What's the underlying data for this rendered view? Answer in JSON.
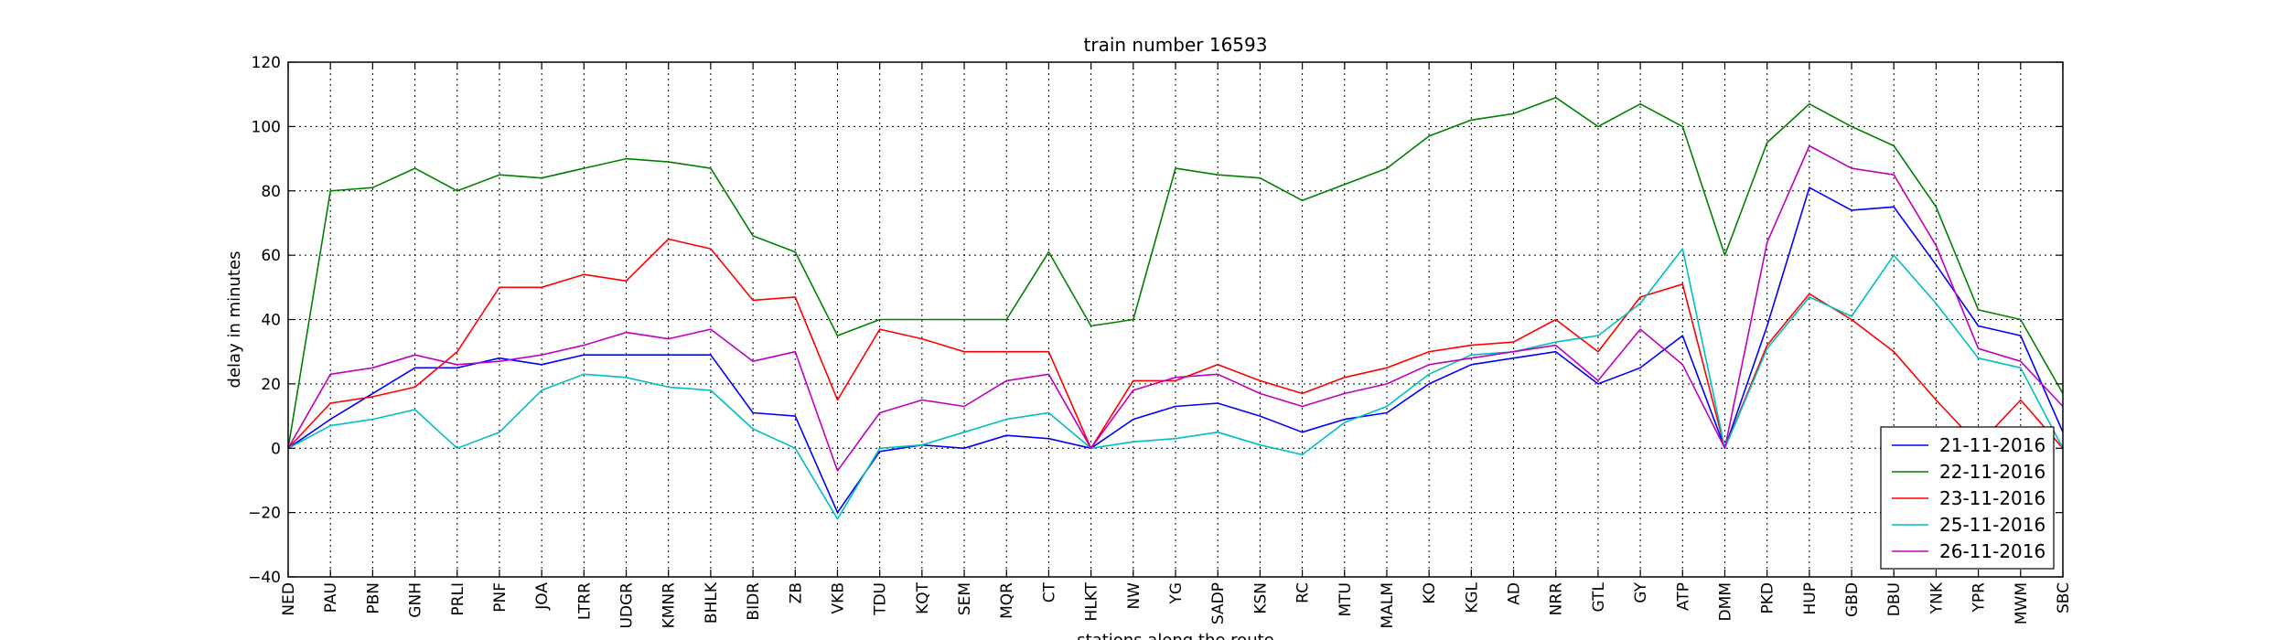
{
  "chart_data": {
    "type": "line",
    "title": "train number 16593",
    "xlabel": "stations along the route",
    "ylabel": "delay in minutes",
    "ylim": [
      -40,
      120
    ],
    "yticks": [
      -40,
      -20,
      0,
      20,
      40,
      60,
      80,
      100,
      120
    ],
    "grid": true,
    "legend_position": "lower-right",
    "categories": [
      "NED",
      "PAU",
      "PBN",
      "GNH",
      "PRLI",
      "PNF",
      "JOA",
      "LTRR",
      "UDGR",
      "KMNR",
      "BHLK",
      "BIDR",
      "ZB",
      "VKB",
      "TDU",
      "KQT",
      "SEM",
      "MQR",
      "CT",
      "HLKT",
      "NW",
      "YG",
      "SADP",
      "KSN",
      "RC",
      "MTU",
      "MALM",
      "KO",
      "KGL",
      "AD",
      "NRR",
      "GTL",
      "GY",
      "ATP",
      "DMM",
      "PKD",
      "HUP",
      "GBD",
      "DBU",
      "YNK",
      "YPR",
      "MWM",
      "SBC"
    ],
    "series": [
      {
        "name": "21-11-2016",
        "color": "#0000ff",
        "values": [
          0,
          9,
          17,
          25,
          25,
          28,
          26,
          29,
          29,
          29,
          29,
          11,
          10,
          -20,
          -1,
          1,
          0,
          4,
          3,
          0,
          9,
          13,
          14,
          10,
          5,
          9,
          11,
          20,
          26,
          28,
          30,
          20,
          25,
          35,
          0,
          38,
          81,
          74,
          75,
          57,
          38,
          35,
          5
        ]
      },
      {
        "name": "22-11-2016",
        "color": "#008000",
        "values": [
          0,
          80,
          81,
          87,
          80,
          85,
          84,
          87,
          90,
          89,
          87,
          66,
          61,
          35,
          40,
          40,
          40,
          40,
          61,
          38,
          40,
          87,
          85,
          84,
          77,
          82,
          87,
          97,
          102,
          104,
          109,
          100,
          107,
          100,
          60,
          95,
          107,
          100,
          94,
          75,
          43,
          40,
          17
        ]
      },
      {
        "name": "23-11-2016",
        "color": "#ff0000",
        "values": [
          0,
          14,
          16,
          19,
          30,
          50,
          50,
          54,
          52,
          65,
          62,
          46,
          47,
          15,
          37,
          34,
          30,
          30,
          30,
          0,
          21,
          21,
          26,
          21,
          17,
          22,
          25,
          30,
          32,
          33,
          40,
          30,
          47,
          51,
          0,
          32,
          48,
          40,
          30,
          15,
          1,
          15,
          0
        ]
      },
      {
        "name": "25-11-2016",
        "color": "#00bfbf",
        "values": [
          0,
          7,
          9,
          12,
          0,
          5,
          18,
          23,
          22,
          19,
          18,
          6,
          0,
          -22,
          0,
          1,
          5,
          9,
          11,
          0,
          2,
          3,
          5,
          1,
          -2,
          8,
          13,
          23,
          29,
          30,
          33,
          35,
          45,
          62,
          0,
          31,
          47,
          41,
          60,
          45,
          28,
          25,
          0
        ]
      },
      {
        "name": "26-11-2016",
        "color": "#bf00bf",
        "values": [
          0,
          23,
          25,
          29,
          26,
          27,
          29,
          32,
          36,
          34,
          37,
          27,
          30,
          -7,
          11,
          15,
          13,
          21,
          23,
          0,
          18,
          22,
          23,
          17,
          13,
          17,
          20,
          26,
          28,
          30,
          32,
          21,
          37,
          26,
          0,
          64,
          94,
          87,
          85,
          63,
          31,
          27,
          13
        ]
      }
    ]
  }
}
